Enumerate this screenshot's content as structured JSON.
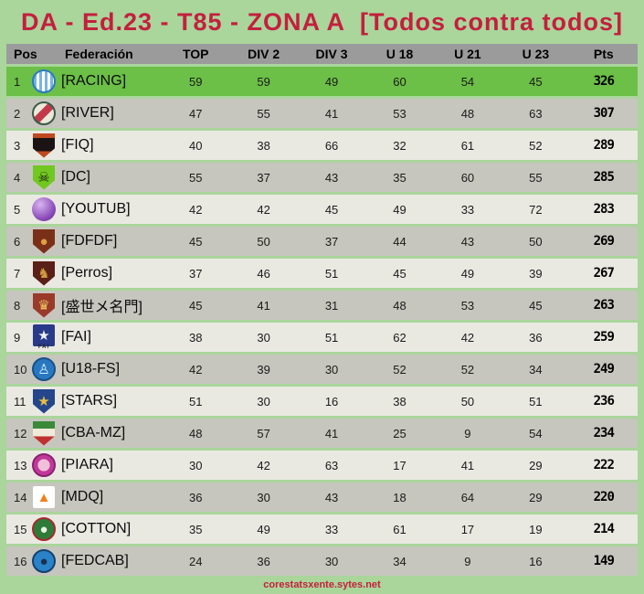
{
  "title": "DA - Ed.23 - T85 - ZONA A  [Todos contra todos]",
  "footer": "corestatsxente.sytes.net",
  "colors": {
    "page_bg": "#aad59b",
    "title_text": "#c41f3e",
    "header_bg": "#9b9b9b",
    "header_text": "#000000",
    "leader_row_bg": "#6cbf47",
    "row_light_bg": "#e9e9e2",
    "row_dark_bg": "#c6c6be",
    "pts_text": "#000000",
    "footer_text": "#c41f3e"
  },
  "columns": [
    "Pos",
    "Federación",
    "TOP",
    "DIV 2",
    "DIV 3",
    "U 18",
    "U 21",
    "U 23",
    "Pts"
  ],
  "rows": [
    {
      "pos": "1",
      "name": "[RACING]",
      "values": [
        "59",
        "59",
        "49",
        "60",
        "54",
        "45"
      ],
      "pts": "326",
      "tone": "leader",
      "icon": {
        "name": "racing-club-badge",
        "shape": "circle",
        "bg": "#ffffff",
        "ring": "#2a7ac0",
        "pattern": "stripes",
        "patternColor": "#7ab4e0"
      }
    },
    {
      "pos": "2",
      "name": "[RIVER]",
      "values": [
        "47",
        "55",
        "41",
        "53",
        "48",
        "63"
      ],
      "pts": "307",
      "tone": "dark",
      "icon": {
        "name": "river-badge",
        "shape": "circle",
        "bg": "#ece8da",
        "ring": "#3a5c48",
        "pattern": "sash",
        "patternColor": "#c23a4a"
      }
    },
    {
      "pos": "3",
      "name": "[FIQ]",
      "values": [
        "40",
        "38",
        "66",
        "32",
        "61",
        "52"
      ],
      "pts": "289",
      "tone": "light",
      "icon": {
        "name": "fiq-badge",
        "shape": "shield",
        "bg": "#1c1414",
        "pattern": "bands",
        "patternColor": "#c04a20"
      }
    },
    {
      "pos": "4",
      "name": "[DC]",
      "values": [
        "55",
        "37",
        "43",
        "35",
        "60",
        "55"
      ],
      "pts": "285",
      "tone": "dark",
      "icon": {
        "name": "dc-badge",
        "shape": "shield",
        "bg": "#70c820",
        "glyph": "☠",
        "glyphColor": "#1a1a1a"
      }
    },
    {
      "pos": "5",
      "name": "[YOUTUB]",
      "values": [
        "42",
        "42",
        "45",
        "49",
        "33",
        "72"
      ],
      "pts": "283",
      "tone": "light",
      "icon": {
        "name": "youtub-orb-badge",
        "shape": "circle",
        "bg": "#8a4ab8",
        "pattern": "orb",
        "patternColor": "#d8b4f0"
      }
    },
    {
      "pos": "6",
      "name": "[FDFDF]",
      "values": [
        "45",
        "50",
        "37",
        "44",
        "43",
        "50"
      ],
      "pts": "269",
      "tone": "dark",
      "icon": {
        "name": "fdfdf-badge",
        "shape": "shield",
        "bg": "#7a3018",
        "glyph": "●",
        "glyphColor": "#e0a040"
      }
    },
    {
      "pos": "7",
      "name": "[Perros]",
      "values": [
        "37",
        "46",
        "51",
        "45",
        "49",
        "39"
      ],
      "pts": "267",
      "tone": "light",
      "icon": {
        "name": "perros-badge",
        "shape": "shield",
        "bg": "#5a1f16",
        "glyph": "♞",
        "glyphColor": "#d09a40"
      }
    },
    {
      "pos": "8",
      "name": "[盛世メ名門]",
      "values": [
        "45",
        "41",
        "31",
        "48",
        "53",
        "45"
      ],
      "pts": "263",
      "tone": "dark",
      "icon": {
        "name": "crown-dynasty-badge",
        "shape": "shield",
        "bg": "#9a3a2a",
        "glyph": "♛",
        "glyphColor": "#e8c060"
      }
    },
    {
      "pos": "9",
      "name": "[FAI]",
      "values": [
        "38",
        "30",
        "51",
        "62",
        "42",
        "36"
      ],
      "pts": "259",
      "tone": "light",
      "icon": {
        "name": "fai-eagle-badge",
        "shape": "square",
        "bg": "#2a3a8a",
        "glyph": "★",
        "glyphColor": "#f0f0f0",
        "caption": "FAI"
      }
    },
    {
      "pos": "10",
      "name": "[U18-FS]",
      "values": [
        "42",
        "39",
        "30",
        "52",
        "52",
        "34"
      ],
      "pts": "249",
      "tone": "dark",
      "icon": {
        "name": "u18fs-player-badge",
        "shape": "circle",
        "bg": "#2878c0",
        "ring": "#1a4f86",
        "glyph": "♙",
        "glyphColor": "#d8ecf8"
      }
    },
    {
      "pos": "11",
      "name": "[STARS]",
      "values": [
        "51",
        "30",
        "16",
        "38",
        "50",
        "51"
      ],
      "pts": "236",
      "tone": "light",
      "icon": {
        "name": "stars-badge",
        "shape": "shield",
        "bg": "#25468a",
        "glyph": "★",
        "glyphColor": "#e8c040"
      }
    },
    {
      "pos": "12",
      "name": "[CBA-MZ]",
      "values": [
        "48",
        "57",
        "41",
        "25",
        "9",
        "54"
      ],
      "pts": "234",
      "tone": "dark",
      "icon": {
        "name": "cba-mz-crest-badge",
        "shape": "shield",
        "bg": "#f0ead8",
        "pattern": "tricolor",
        "patternColor": "#c03030",
        "patternColor2": "#3a8a3a"
      }
    },
    {
      "pos": "13",
      "name": "[PIARA]",
      "values": [
        "30",
        "42",
        "63",
        "17",
        "41",
        "29"
      ],
      "pts": "222",
      "tone": "light",
      "icon": {
        "name": "piara-pig-badge",
        "shape": "circle",
        "bg": "#c2389a",
        "ring": "#8a2070",
        "pattern": "center",
        "patternColor": "#f0c0da"
      }
    },
    {
      "pos": "14",
      "name": "[MDQ]",
      "values": [
        "36",
        "30",
        "43",
        "18",
        "64",
        "29"
      ],
      "pts": "220",
      "tone": "dark",
      "icon": {
        "name": "mdq-flame-badge",
        "shape": "square",
        "bg": "#ffffff",
        "glyph": "▲",
        "glyphColor": "#f08018"
      }
    },
    {
      "pos": "15",
      "name": "[COTTON]",
      "values": [
        "35",
        "49",
        "33",
        "61",
        "17",
        "19"
      ],
      "pts": "214",
      "tone": "light",
      "icon": {
        "name": "cotton-badge",
        "shape": "circle",
        "bg": "#2c7c38",
        "ring": "#a82830",
        "glyph": "●",
        "glyphColor": "#f0efe6"
      }
    },
    {
      "pos": "16",
      "name": "[FEDCAB]",
      "values": [
        "24",
        "36",
        "30",
        "34",
        "9",
        "16"
      ],
      "pts": "149",
      "tone": "dark",
      "icon": {
        "name": "fedcab-fish-badge",
        "shape": "circle",
        "bg": "#2a82c8",
        "ring": "#16406e",
        "glyph": "●",
        "glyphColor": "#1a3050"
      }
    }
  ]
}
